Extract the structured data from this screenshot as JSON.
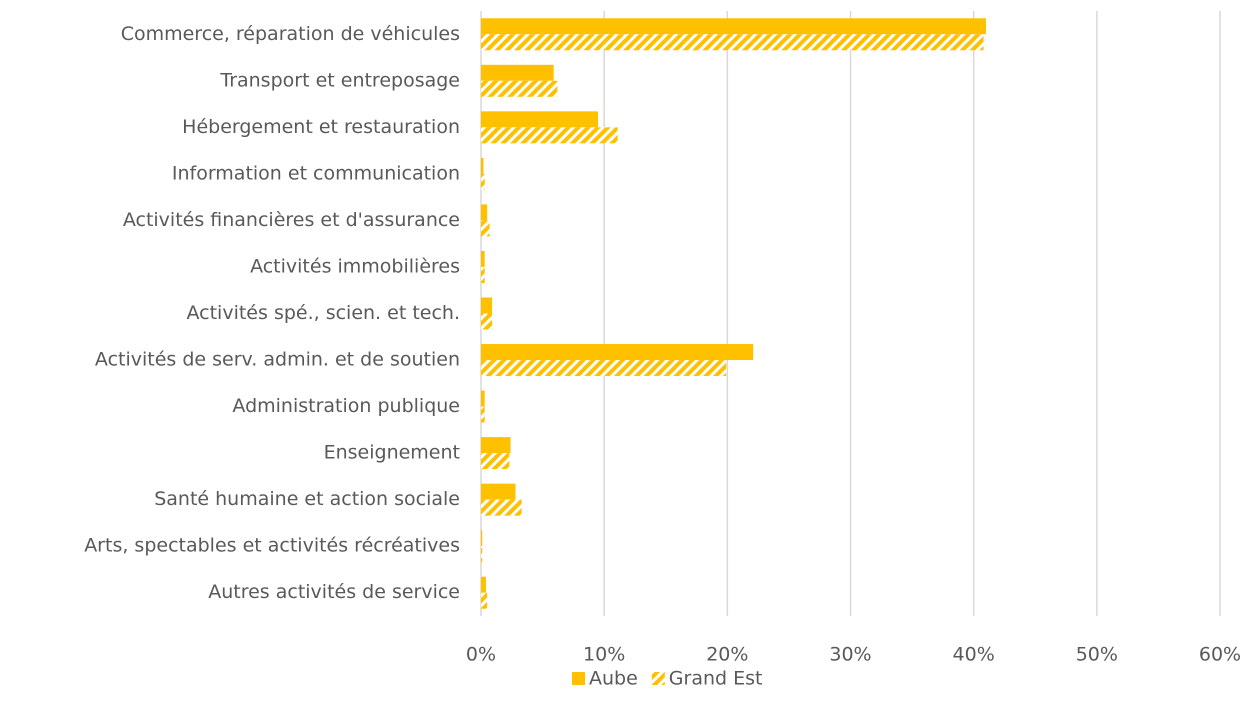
{
  "chart_data": {
    "type": "hbar",
    "categories": [
      "Commerce, réparation de véhicules",
      "Transport et entreposage",
      "Hébergement et restauration",
      "Information et communication",
      "Activités financières et d'assurance",
      "Activités immobilières",
      "Activités spé., scien. et tech.",
      "Activités de serv. admin. et de soutien",
      "Administration publique",
      "Enseignement",
      "Santé humaine et action sociale",
      "Arts, spectables et activités récréatives",
      "Autres activités de service"
    ],
    "series": [
      {
        "name": "Aube",
        "color": "#FFC000",
        "pattern": "solid",
        "values": [
          41.0,
          5.9,
          9.5,
          0.2,
          0.5,
          0.3,
          0.9,
          22.1,
          0.3,
          2.4,
          2.8,
          0.1,
          0.4
        ]
      },
      {
        "name": "Grand Est",
        "color": "#FFC000",
        "pattern": "hatch",
        "values": [
          40.8,
          6.2,
          11.1,
          0.3,
          0.7,
          0.3,
          0.9,
          19.9,
          0.3,
          2.3,
          3.3,
          0.1,
          0.5
        ]
      }
    ],
    "xlim": [
      0,
      60
    ],
    "xticks": [
      {
        "value": 0,
        "label": "0%"
      },
      {
        "value": 10,
        "label": "10%"
      },
      {
        "value": 20,
        "label": "20%"
      },
      {
        "value": 30,
        "label": "30%"
      },
      {
        "value": 40,
        "label": "40%"
      },
      {
        "value": 50,
        "label": "50%"
      },
      {
        "value": 60,
        "label": "60%"
      }
    ],
    "grid": true,
    "legend": "bottom"
  }
}
